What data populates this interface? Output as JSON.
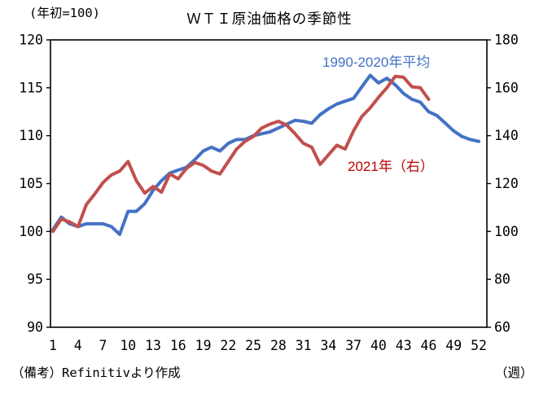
{
  "header": {
    "unit_note": "(年初=100)",
    "title": "ＷＴＩ原油価格の季節性"
  },
  "footer": {
    "note": "（備考）Refinitivより作成",
    "xlabel": "（週）"
  },
  "colors": {
    "blue_line": "#4472c4",
    "red_line": "#c0504d",
    "blue_label": "#4472c4",
    "red_label": "#c00000",
    "axis": "#000000",
    "background": "#ffffff"
  },
  "chart_data": {
    "type": "line",
    "title": "ＷＴＩ原油価格の季節性",
    "xlabel": "（週）",
    "x_unit": "week",
    "weeks": [
      1,
      2,
      3,
      4,
      5,
      6,
      7,
      8,
      9,
      10,
      11,
      12,
      13,
      14,
      15,
      16,
      17,
      18,
      19,
      20,
      21,
      22,
      23,
      24,
      25,
      26,
      27,
      28,
      29,
      30,
      31,
      32,
      33,
      34,
      35,
      36,
      37,
      38,
      39,
      40,
      41,
      42,
      43,
      44,
      45,
      46,
      47,
      48,
      49,
      50,
      51,
      52
    ],
    "x_ticks": [
      1,
      4,
      7,
      10,
      13,
      16,
      19,
      22,
      25,
      28,
      31,
      34,
      37,
      40,
      43,
      46,
      49,
      52
    ],
    "left_axis": {
      "label": "(年初=100)",
      "min": 90,
      "max": 120,
      "ticks": [
        90,
        95,
        100,
        105,
        110,
        115,
        120
      ]
    },
    "right_axis": {
      "label": "（週）",
      "min": 60,
      "max": 180,
      "ticks": [
        60,
        80,
        100,
        120,
        140,
        160,
        180
      ]
    },
    "grid": false,
    "legend_position": "inline-annotations",
    "series": [
      {
        "name": "1990-2020年平均",
        "axis": "left",
        "color": "#4472c4",
        "values": [
          100.2,
          101.5,
          100.8,
          100.5,
          100.8,
          100.8,
          100.8,
          100.5,
          99.7,
          102.1,
          102.1,
          102.9,
          104.3,
          105.3,
          106.1,
          106.4,
          106.7,
          107.5,
          108.4,
          108.8,
          108.4,
          109.2,
          109.6,
          109.6,
          110.0,
          110.2,
          110.4,
          110.8,
          111.2,
          111.6,
          111.5,
          111.3,
          112.2,
          112.8,
          113.3,
          113.6,
          113.9,
          115.1,
          116.3,
          115.5,
          116.0,
          115.3,
          114.4,
          113.8,
          113.5,
          112.5,
          112.1,
          111.3,
          110.5,
          109.9,
          109.6,
          109.4
        ]
      },
      {
        "name": "2021年（右）",
        "axis": "right",
        "color": "#c0504d",
        "values": [
          100.0,
          105.2,
          104.0,
          102.0,
          111.2,
          115.6,
          120.4,
          123.6,
          125.2,
          129.2,
          121.2,
          116.0,
          118.8,
          116.4,
          124.0,
          122.0,
          126.4,
          128.8,
          127.6,
          125.2,
          124.0,
          129.2,
          134.4,
          137.6,
          139.6,
          143.2,
          144.8,
          146.0,
          144.4,
          140.8,
          136.8,
          135.2,
          128.0,
          132.0,
          136.0,
          134.4,
          142.0,
          148.0,
          151.6,
          156.0,
          160.0,
          164.8,
          164.4,
          160.4,
          160.0,
          155.2
        ]
      }
    ]
  }
}
